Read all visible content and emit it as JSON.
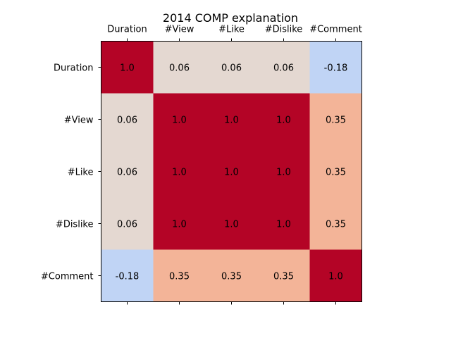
{
  "chart_data": {
    "type": "heatmap",
    "title": "2014 COMP explanation",
    "xlabel": "",
    "ylabel": "",
    "x_tick_position": "top",
    "grid": false,
    "legend": "none",
    "colormap": "coolwarm",
    "vmin": -1.0,
    "vmax": 1.0,
    "categories_x": [
      "Duration",
      "#View",
      "#Like",
      "#Dislike",
      "#Comment"
    ],
    "categories_y": [
      "Duration",
      "#View",
      "#Like",
      "#Dislike",
      "#Comment"
    ],
    "values": [
      [
        1.0,
        0.06,
        0.06,
        0.06,
        -0.18
      ],
      [
        0.06,
        1.0,
        1.0,
        1.0,
        0.35
      ],
      [
        0.06,
        1.0,
        1.0,
        1.0,
        0.35
      ],
      [
        0.06,
        1.0,
        1.0,
        1.0,
        0.35
      ],
      [
        -0.18,
        0.35,
        0.35,
        0.35,
        1.0
      ]
    ],
    "labels": [
      [
        "1.0",
        "0.06",
        "0.06",
        "0.06",
        "-0.18"
      ],
      [
        "0.06",
        "1.0",
        "1.0",
        "1.0",
        "0.35"
      ],
      [
        "0.06",
        "1.0",
        "1.0",
        "1.0",
        "0.35"
      ],
      [
        "0.06",
        "1.0",
        "1.0",
        "1.0",
        "0.35"
      ],
      [
        "-0.18",
        "0.35",
        "0.35",
        "0.35",
        "1.0"
      ]
    ]
  }
}
